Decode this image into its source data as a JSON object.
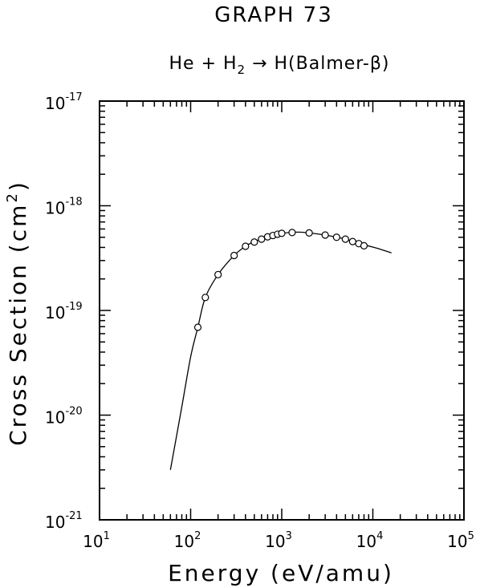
{
  "chart_data": {
    "type": "scatter",
    "title": "GRAPH 73",
    "subtitle": {
      "parts": [
        "He + H",
        "2",
        " → H(Balmer-β)"
      ]
    },
    "xlabel": "Energy (eV/amu)",
    "ylabel": {
      "main": "Cross Section (cm",
      "sup": "2",
      "end": ")"
    },
    "xscale": "log",
    "yscale": "log",
    "xlim": [
      10,
      100000
    ],
    "ylim": [
      1e-21,
      1e-17
    ],
    "x_ticks": [
      {
        "base": "10",
        "exp": "1",
        "value": 10
      },
      {
        "base": "10",
        "exp": "2",
        "value": 100
      },
      {
        "base": "10",
        "exp": "3",
        "value": 1000
      },
      {
        "base": "10",
        "exp": "4",
        "value": 10000
      },
      {
        "base": "10",
        "exp": "5",
        "value": 100000
      }
    ],
    "y_ticks": [
      {
        "base": "10",
        "exp": "-21",
        "value": 1e-21
      },
      {
        "base": "10",
        "exp": "-20",
        "value": 1e-20
      },
      {
        "base": "10",
        "exp": "-19",
        "value": 1e-19
      },
      {
        "base": "10",
        "exp": "-18",
        "value": 1e-18
      },
      {
        "base": "10",
        "exp": "-17",
        "value": 1e-17
      }
    ],
    "grid": false,
    "series": [
      {
        "kind": "points",
        "marker": "open-circle",
        "x": [
          120,
          145,
          200,
          300,
          400,
          500,
          600,
          700,
          800,
          900,
          1000,
          1300,
          2000,
          3000,
          4000,
          5000,
          6000,
          7000,
          8000
        ],
        "y": [
          6.9e-20,
          1.33e-19,
          2.2e-19,
          3.35e-19,
          4.1e-19,
          4.5e-19,
          4.8e-19,
          5.05e-19,
          5.2e-19,
          5.35e-19,
          5.45e-19,
          5.55e-19,
          5.5e-19,
          5.25e-19,
          5e-19,
          4.8e-19,
          4.55e-19,
          4.35e-19,
          4.15e-19
        ]
      },
      {
        "kind": "line",
        "x": [
          60,
          80,
          100,
          120,
          145,
          200,
          300,
          400,
          500,
          700,
          1000,
          1500,
          2000,
          3000,
          5000,
          8000,
          12000,
          16000
        ],
        "y": [
          3e-21,
          1.2e-20,
          3.6e-20,
          6.9e-20,
          1.33e-19,
          2.2e-19,
          3.35e-19,
          4.1e-19,
          4.55e-19,
          5.05e-19,
          5.45e-19,
          5.6e-19,
          5.5e-19,
          5.25e-19,
          4.8e-19,
          4.25e-19,
          3.85e-19,
          3.55e-19
        ]
      }
    ]
  }
}
